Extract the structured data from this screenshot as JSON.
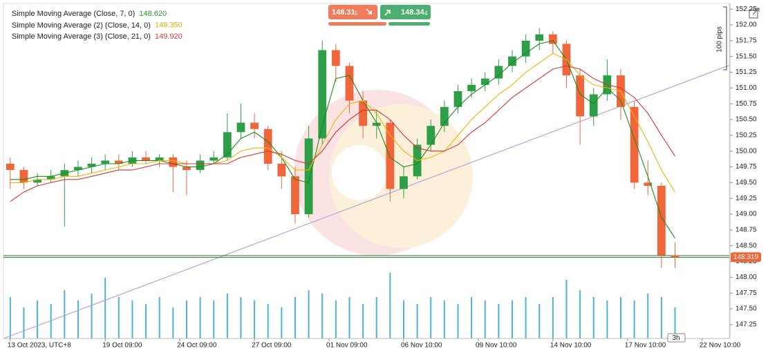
{
  "chart_data": {
    "type": "candlestick",
    "ylim": [
      147.03,
      152.34
    ],
    "yticks": [
      147.25,
      {
        "value": 147.5,
        "label": "147.50"
      },
      147.75,
      {
        "value": 148,
        "label": "148.00"
      },
      148.25,
      {
        "value": 148.5,
        "label": "148.50"
      },
      148.75,
      {
        "value": 149,
        "label": "149.00"
      },
      149.25,
      {
        "value": 149.5,
        "label": "149.50"
      },
      149.75,
      {
        "value": 150,
        "label": "150.00"
      },
      150.25,
      {
        "value": 150.5,
        "label": "150.50"
      },
      150.75,
      {
        "value": 151,
        "label": "151.00"
      },
      151.25,
      {
        "value": 151.5,
        "label": "151.50"
      },
      151.75,
      {
        "value": 152,
        "label": "152.00"
      },
      152.25
    ],
    "xlim": [
      -0.5,
      53
    ],
    "xticks": [
      {
        "value": 0,
        "label": "13 Oct 2023, UTC+8"
      },
      {
        "value": 7,
        "label": "19 Oct 09:00"
      },
      {
        "value": 12.5,
        "label": "24 Oct 09:00"
      },
      {
        "value": 18,
        "label": "27 Oct 09:00"
      },
      {
        "value": 23.5,
        "label": "01 Nov 09:00"
      },
      {
        "value": 29,
        "label": "06 Nov 10:00"
      },
      {
        "value": 34.5,
        "label": "09 Nov 10:00"
      },
      {
        "value": 40,
        "label": "14 Nov 10:00"
      },
      {
        "value": 45.5,
        "label": "17 Nov 10:00"
      },
      {
        "value": 51,
        "label": "22 Nov 10:00"
      }
    ],
    "grid": false,
    "up_color": "#2e9e48",
    "down_color": "#f0653a",
    "volume_color": "#4bb3d8",
    "ohlc": [
      [
        149.8,
        149.9,
        149.4,
        149.7
      ],
      [
        149.7,
        149.75,
        149.4,
        149.5
      ],
      [
        149.5,
        149.65,
        149.45,
        149.55
      ],
      [
        149.55,
        149.7,
        149.5,
        149.6
      ],
      [
        149.6,
        149.8,
        148.8,
        149.7
      ],
      [
        149.7,
        149.85,
        149.6,
        149.75
      ],
      [
        149.75,
        149.9,
        149.65,
        149.8
      ],
      [
        149.8,
        149.95,
        149.7,
        149.85
      ],
      [
        149.85,
        149.95,
        149.7,
        149.8
      ],
      [
        149.8,
        150.0,
        149.75,
        149.9
      ],
      [
        149.9,
        150.0,
        149.8,
        149.85
      ],
      [
        149.85,
        149.95,
        149.75,
        149.9
      ],
      [
        149.9,
        149.95,
        149.35,
        149.75
      ],
      [
        149.75,
        149.85,
        149.3,
        149.7
      ],
      [
        149.7,
        149.95,
        149.65,
        149.85
      ],
      [
        149.85,
        150.0,
        149.8,
        149.9
      ],
      [
        149.9,
        150.6,
        149.85,
        150.3
      ],
      [
        150.3,
        150.75,
        150.2,
        150.45
      ],
      [
        150.45,
        150.6,
        150.2,
        150.35
      ],
      [
        150.35,
        150.4,
        149.7,
        149.8
      ],
      [
        149.8,
        150.0,
        149.4,
        149.6
      ],
      [
        149.6,
        149.75,
        148.85,
        149.0
      ],
      [
        149.0,
        150.4,
        148.95,
        150.2
      ],
      [
        150.2,
        151.75,
        150.1,
        151.6
      ],
      [
        151.6,
        151.7,
        151.1,
        151.35
      ],
      [
        151.35,
        151.4,
        150.6,
        150.8
      ],
      [
        150.8,
        150.95,
        150.2,
        150.4
      ],
      [
        150.4,
        150.65,
        150.2,
        150.45
      ],
      [
        150.45,
        150.5,
        149.2,
        149.4
      ],
      [
        149.4,
        149.75,
        149.25,
        149.6
      ],
      [
        149.6,
        150.2,
        149.55,
        150.1
      ],
      [
        150.1,
        150.5,
        150.0,
        150.4
      ],
      [
        150.4,
        150.8,
        150.3,
        150.7
      ],
      [
        150.7,
        151.05,
        150.6,
        150.95
      ],
      [
        150.95,
        151.15,
        150.85,
        151.05
      ],
      [
        151.05,
        151.25,
        150.95,
        151.15
      ],
      [
        151.15,
        151.45,
        151.05,
        151.35
      ],
      [
        151.35,
        151.6,
        151.25,
        151.5
      ],
      [
        151.5,
        151.85,
        151.4,
        151.75
      ],
      [
        151.75,
        151.95,
        151.6,
        151.85
      ],
      [
        151.85,
        151.9,
        151.55,
        151.7
      ],
      [
        151.7,
        151.75,
        151.0,
        151.2
      ],
      [
        151.2,
        151.3,
        150.1,
        150.55
      ],
      [
        150.55,
        151.0,
        150.4,
        150.9
      ],
      [
        150.9,
        151.45,
        150.8,
        151.2
      ],
      [
        151.2,
        151.3,
        150.5,
        150.7
      ],
      [
        150.7,
        150.8,
        149.4,
        149.5
      ],
      [
        149.5,
        149.85,
        149.3,
        149.45
      ],
      [
        149.45,
        149.5,
        148.15,
        148.35
      ],
      [
        148.35,
        148.55,
        148.15,
        148.32
      ]
    ],
    "volume": [
      60,
      45,
      55,
      50,
      70,
      55,
      65,
      88,
      60,
      55,
      50,
      60,
      45,
      55,
      60,
      55,
      65,
      60,
      55,
      50,
      45,
      60,
      70,
      65,
      55,
      60,
      50,
      60,
      95,
      55,
      50,
      60,
      55,
      50,
      60,
      55,
      50,
      55,
      60,
      50,
      60,
      85,
      70,
      60,
      55,
      60,
      55,
      65,
      60,
      45
    ],
    "series": [
      {
        "name": "Simple Moving Average (Close, 7, 0)",
        "color": "#1a8c1a",
        "label_color": "#2a9d2a",
        "last": {
          "value": 148.62,
          "label": "148.620"
        },
        "values": [
          149.55,
          149.55,
          149.6,
          149.6,
          149.65,
          149.7,
          149.75,
          149.8,
          149.8,
          149.85,
          149.85,
          149.85,
          149.8,
          149.75,
          149.75,
          149.8,
          149.95,
          150.2,
          150.3,
          150.15,
          149.9,
          149.55,
          149.5,
          150.4,
          151.15,
          151.2,
          150.8,
          150.45,
          149.9,
          149.75,
          149.8,
          150.1,
          150.45,
          150.7,
          150.9,
          151.05,
          151.2,
          151.4,
          151.55,
          151.7,
          151.75,
          151.45,
          150.9,
          150.75,
          151.0,
          150.8,
          150.2,
          149.6,
          148.95,
          148.62
        ]
      },
      {
        "name": "Simple Moving Average (2) (Close, 14, 0)",
        "color": "#f0b400",
        "label_color": "#e0b000",
        "last": {
          "value": 149.35,
          "label": "149.350"
        },
        "values": [
          149.5,
          149.5,
          149.55,
          149.55,
          149.6,
          149.6,
          149.65,
          149.7,
          149.75,
          149.8,
          149.8,
          149.85,
          149.85,
          149.8,
          149.8,
          149.8,
          149.85,
          150.0,
          150.05,
          150.05,
          149.9,
          149.7,
          149.7,
          150.1,
          150.5,
          150.75,
          150.8,
          150.6,
          150.25,
          150.0,
          149.85,
          149.9,
          150.0,
          150.25,
          150.5,
          150.7,
          150.9,
          151.05,
          151.25,
          151.4,
          151.55,
          151.45,
          151.2,
          151.05,
          151.0,
          150.95,
          150.55,
          150.15,
          149.7,
          149.35
        ]
      },
      {
        "name": "Simple Moving Average (3) (Close, 21, 0)",
        "color": "#e03030",
        "label_color": "#e04040",
        "last": {
          "value": 149.92,
          "label": "149.920"
        },
        "values": [
          149.2,
          149.35,
          149.45,
          149.5,
          149.55,
          149.55,
          149.6,
          149.65,
          149.7,
          149.7,
          149.75,
          149.8,
          149.8,
          149.8,
          149.8,
          149.8,
          149.8,
          149.9,
          149.95,
          150.0,
          149.95,
          149.85,
          149.8,
          150.0,
          150.3,
          150.5,
          150.65,
          150.65,
          150.5,
          150.25,
          150.05,
          150.0,
          150.0,
          150.1,
          150.3,
          150.45,
          150.65,
          150.85,
          151.0,
          151.15,
          151.3,
          151.35,
          151.3,
          151.15,
          151.05,
          151.0,
          150.85,
          150.6,
          150.25,
          149.92
        ]
      }
    ],
    "trendline": {
      "x": [
        -0.5,
        53
      ],
      "y": [
        147.03,
        151.36
      ],
      "color": "#b9a0dc"
    },
    "bid_line": 148.315,
    "ask_line": 148.344,
    "price_line_color": "#2d7a2d",
    "last_price": 148.319,
    "pips_label": "100 pips",
    "timeframe_label": "3h"
  },
  "trade_panel": {
    "sell_price": "148.31",
    "sell_pip": "5",
    "buy_price": "148.34",
    "buy_pip": "4"
  }
}
